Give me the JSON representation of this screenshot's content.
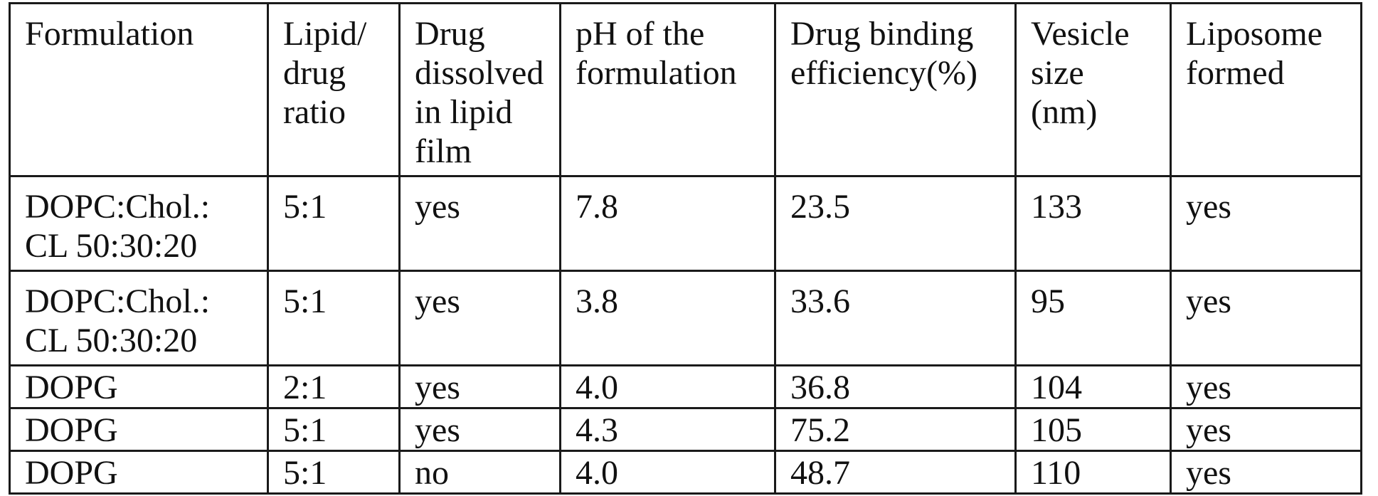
{
  "table": {
    "headers": [
      "Formulation",
      "Lipid/\ndrug\nratio",
      "Drug\ndissolved\nin lipid\nfilm",
      "pH of the\nformulation",
      "Drug binding\nefficiency(%)",
      "Vesicle\nsize\n(nm)",
      "Liposome\nformed"
    ],
    "rows": [
      [
        "DOPC:Chol.:\nCL 50:30:20",
        "5:1",
        "yes",
        "7.8",
        "23.5",
        "133",
        "yes"
      ],
      [
        "DOPC:Chol.:\nCL 50:30:20",
        "5:1",
        "yes",
        "3.8",
        "33.6",
        "95",
        "yes"
      ],
      [
        "DOPG",
        "2:1",
        "yes",
        "4.0",
        "36.8",
        "104",
        "yes"
      ],
      [
        "DOPG",
        "5:1",
        "yes",
        "4.3",
        "75.2",
        "105",
        "yes"
      ],
      [
        "DOPG",
        "5:1",
        "no",
        "4.0",
        "48.7",
        "110",
        "yes"
      ]
    ]
  }
}
